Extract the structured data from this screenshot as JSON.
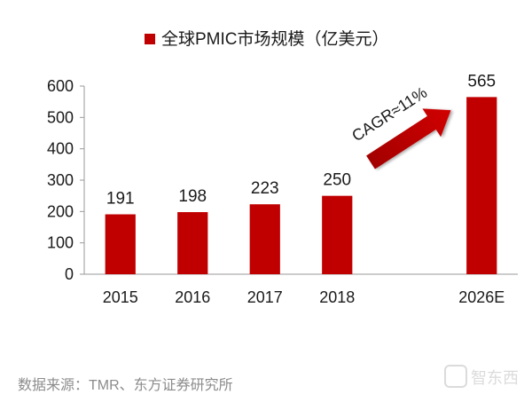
{
  "chart_data": {
    "type": "bar",
    "title": "",
    "legend": {
      "position": "top",
      "entries": [
        "全球PMIC市场规模（亿美元）"
      ]
    },
    "series": [
      {
        "name": "全球PMIC市场规模（亿美元）",
        "values": [
          191,
          198,
          223,
          250,
          565
        ],
        "color": "#c00000"
      }
    ],
    "categories": [
      "2015",
      "2016",
      "2017",
      "2018",
      "2026E"
    ],
    "category_slots": [
      0,
      1,
      2,
      3,
      5
    ],
    "slot_count": 6,
    "ylim": [
      0,
      600
    ],
    "yticks": [
      0,
      100,
      200,
      300,
      400,
      500,
      600
    ],
    "xlabel": "",
    "ylabel": "",
    "grid": false,
    "data_labels": [
      "191",
      "198",
      "223",
      "250",
      "565"
    ],
    "annotation": {
      "text": "CAGR≈11%",
      "type": "arrow",
      "color": "#c00000"
    }
  },
  "footer": {
    "source": "数据来源：TMR、东方证券研究所"
  },
  "watermark": {
    "text": "智东西"
  }
}
